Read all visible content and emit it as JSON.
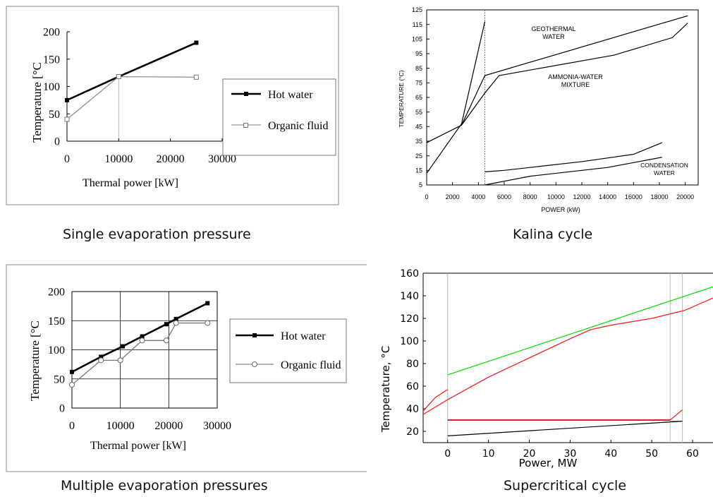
{
  "captions": {
    "single": "Single evaporation pressure",
    "kalina": "Kalina cycle",
    "multiple": "Multiple evaporation pressures",
    "supercritical": "Supercritical cycle"
  },
  "chart_data": [
    {
      "id": "single",
      "type": "line",
      "xlabel": "Thermal power  [kW]",
      "ylabel": "Temperature  [°C",
      "xlim": [
        0,
        30000
      ],
      "ylim": [
        0,
        200
      ],
      "xticks": [
        "0",
        "10000",
        "20000",
        "30000"
      ],
      "yticks": [
        "0",
        "50",
        "100",
        "150",
        "200"
      ],
      "legend_position": "right",
      "series": [
        {
          "name": "Hot water",
          "color": "#000000",
          "marker": "filled-square",
          "x": [
            0,
            10000,
            25000
          ],
          "y": [
            75,
            118,
            180
          ]
        },
        {
          "name": "Organic fluid",
          "color": "#888888",
          "marker": "open-square",
          "x": [
            0,
            10000,
            25000
          ],
          "y": [
            40,
            118,
            117
          ]
        }
      ]
    },
    {
      "id": "kalina",
      "type": "line",
      "xlabel": "POWER (kW)",
      "ylabel": "TEMPERATURE (°C)",
      "xlim": [
        0,
        21000
      ],
      "ylim": [
        5,
        125
      ],
      "xticks": [
        "0",
        "2000",
        "4000",
        "6000",
        "8000",
        "10000",
        "12000",
        "14000",
        "16000",
        "18000",
        "20000"
      ],
      "yticks": [
        "5",
        "15",
        "25",
        "35",
        "45",
        "55",
        "65",
        "75",
        "85",
        "95",
        "105",
        "115",
        "125"
      ],
      "annotations": [
        "GEOTHERMAL",
        "WATER",
        "AMMONIA-WATER",
        "MIXTURE",
        "CONDENSATION",
        "WATER"
      ],
      "series": [
        {
          "color": "#000000",
          "x": [
            0,
            2700,
            4500
          ],
          "y": [
            13,
            47,
            117
          ]
        },
        {
          "color": "#000000",
          "x": [
            0,
            2700,
            4500,
            20200
          ],
          "y": [
            34,
            46,
            80,
            121
          ]
        },
        {
          "color": "#000000",
          "x": [
            2700,
            4500,
            5600,
            14500,
            19000,
            20200
          ],
          "y": [
            46,
            68,
            80,
            94,
            106,
            116
          ]
        },
        {
          "color": "#000000",
          "x": [
            4500,
            6000,
            12000,
            16000,
            18200
          ],
          "y": [
            14,
            15,
            21,
            26,
            34
          ]
        },
        {
          "color": "#000000",
          "x": [
            4500,
            8000,
            14000,
            18200
          ],
          "y": [
            5,
            11,
            17,
            24
          ]
        }
      ]
    },
    {
      "id": "multiple",
      "type": "line",
      "xlabel": "Thermal power [kW]",
      "ylabel": "Temperature  [°C",
      "xlim": [
        0,
        30000
      ],
      "ylim": [
        0,
        200
      ],
      "xticks": [
        "0",
        "10000",
        "20000",
        "30000"
      ],
      "yticks": [
        "0",
        "50",
        "100",
        "150",
        "200"
      ],
      "grid": true,
      "legend_position": "right",
      "series": [
        {
          "name": "Hot water",
          "color": "#000000",
          "marker": "filled-square",
          "x": [
            0,
            6000,
            10500,
            14500,
            19500,
            21500,
            28000
          ],
          "y": [
            62,
            88,
            106,
            123,
            144,
            153,
            180
          ]
        },
        {
          "name": "Organic fluid",
          "color": "#777777",
          "marker": "open-circle",
          "x": [
            0,
            6000,
            10000,
            14500,
            19500,
            21500,
            28000
          ],
          "y": [
            40,
            82,
            82,
            116,
            116,
            146,
            146
          ]
        }
      ]
    },
    {
      "id": "supercritical",
      "type": "line",
      "xlabel": "Power, MW",
      "ylabel": "Temperature, °C",
      "xlim": [
        -6,
        65
      ],
      "ylim": [
        10,
        160
      ],
      "xticks": [
        "0",
        "10",
        "20",
        "30",
        "40",
        "50",
        "60"
      ],
      "yticks": [
        "20",
        "40",
        "60",
        "80",
        "100",
        "120",
        "140",
        "160"
      ],
      "series": [
        {
          "color": "#00dd00",
          "x": [
            0,
            65
          ],
          "y": [
            70,
            148
          ]
        },
        {
          "color": "#ee2222",
          "x": [
            -6,
            0,
            10,
            20,
            30,
            35,
            40,
            50,
            58,
            65
          ],
          "y": [
            35,
            48,
            68,
            85,
            102,
            110,
            114,
            120,
            127,
            138
          ]
        },
        {
          "color": "#ee2222",
          "x": [
            -6,
            -3,
            0
          ],
          "y": [
            38,
            50,
            57
          ]
        },
        {
          "color": "#dd0000",
          "x": [
            0,
            54.5
          ],
          "y": [
            30,
            30
          ]
        },
        {
          "color": "#ee2222",
          "x": [
            54.5,
            57.5
          ],
          "y": [
            30,
            39
          ]
        },
        {
          "color": "#000000",
          "x": [
            0,
            57.5
          ],
          "y": [
            16,
            29
          ]
        }
      ]
    }
  ]
}
